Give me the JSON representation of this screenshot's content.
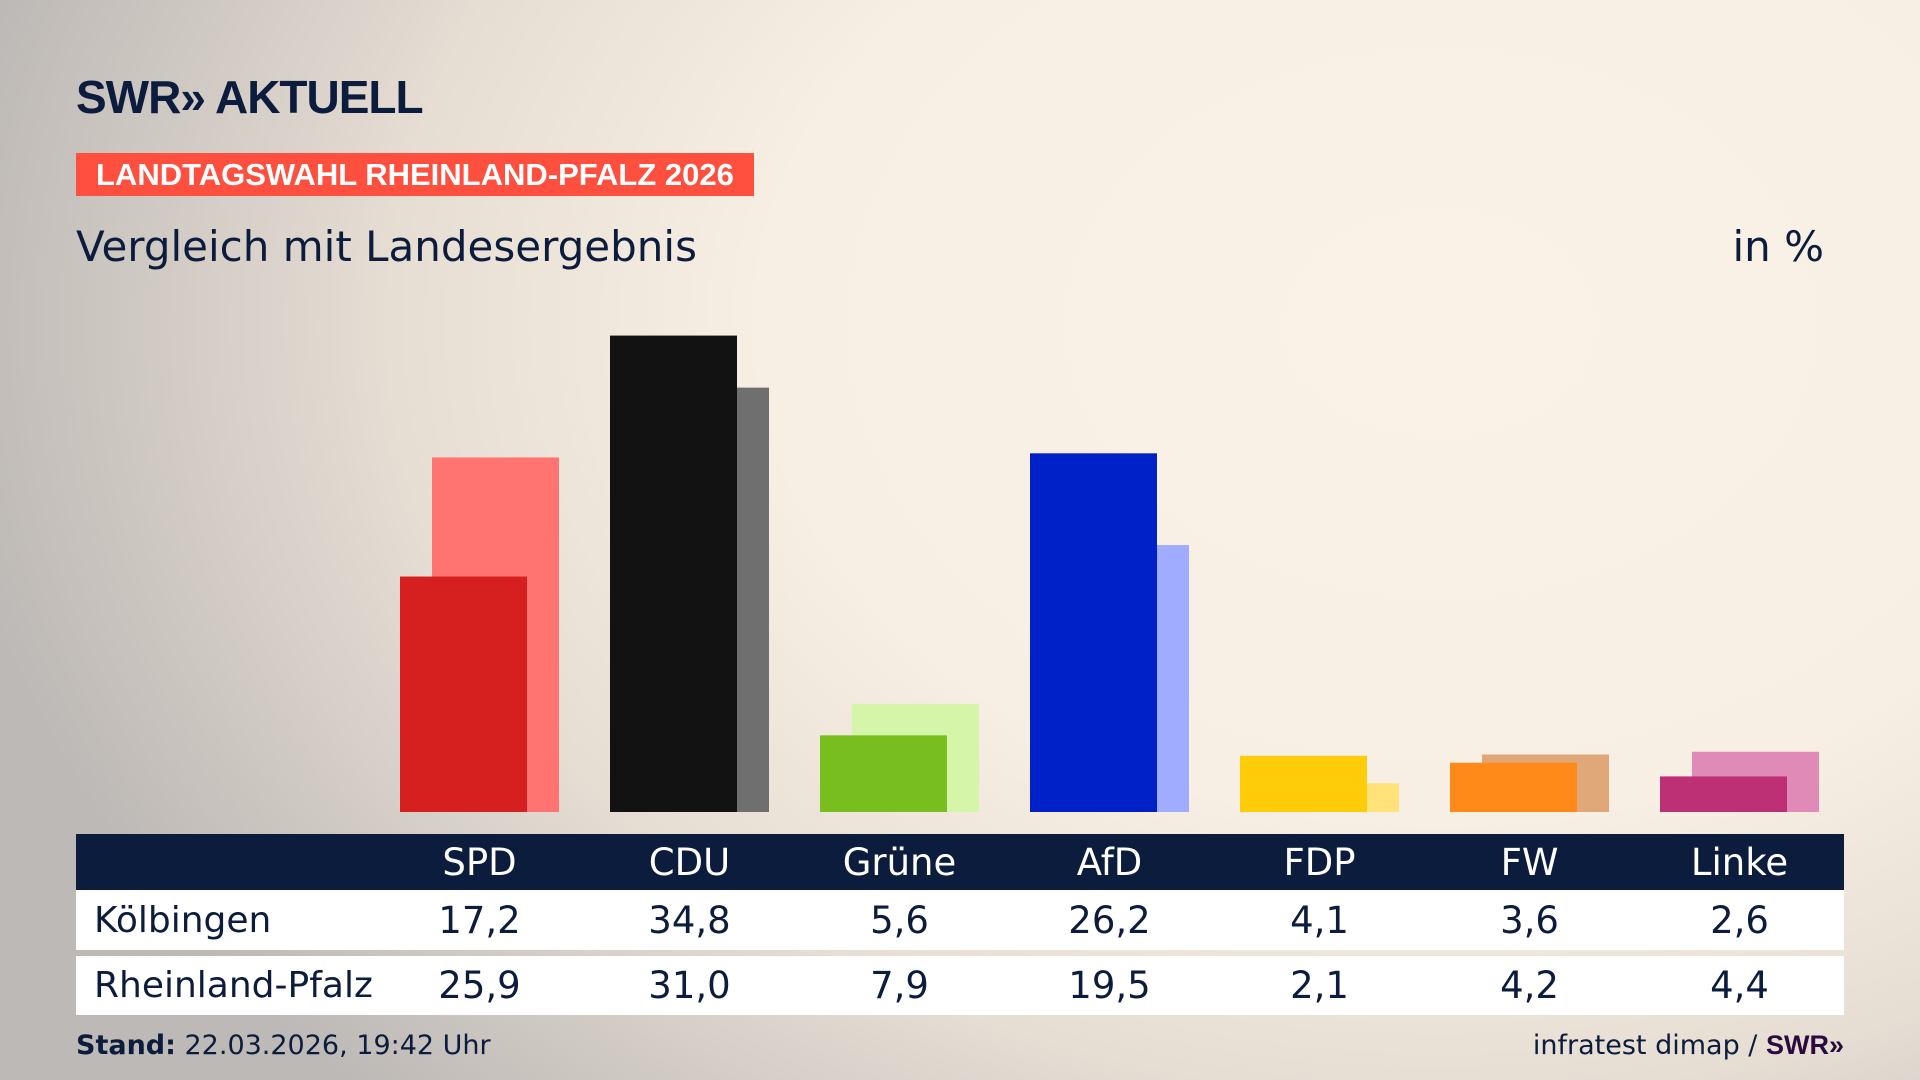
{
  "header": {
    "logo": "SWR» AKTUELL",
    "banner": "LANDTAGSWAHL RHEINLAND-PFALZ 2026",
    "subtitle": "Vergleich mit Landesergebnis",
    "unit": "in %"
  },
  "chart_data": {
    "type": "bar",
    "title": "Vergleich mit Landesergebnis",
    "unit": "in %",
    "categories": [
      "SPD",
      "CDU",
      "Grüne",
      "AfD",
      "FDP",
      "FW",
      "Linke"
    ],
    "series": [
      {
        "name": "Kölbingen",
        "values": [
          17.2,
          34.8,
          5.6,
          26.2,
          4.1,
          3.6,
          2.6
        ],
        "display": [
          "17,2",
          "34,8",
          "5,6",
          "26,2",
          "4,1",
          "3,6",
          "2,6"
        ],
        "colors": [
          "#d61f1f",
          "#121212",
          "#78be1e",
          "#0020c8",
          "#ffcc0a",
          "#ff8a1a",
          "#be3075"
        ]
      },
      {
        "name": "Rheinland-Pfalz",
        "values": [
          25.9,
          31.0,
          7.9,
          19.5,
          2.1,
          4.2,
          4.4
        ],
        "display": [
          "25,9",
          "31,0",
          "7,9",
          "19,5",
          "2,1",
          "4,2",
          "4,4"
        ],
        "colors": [
          "#ff7470",
          "#6f6f6f",
          "#d5f5a8",
          "#a0acff",
          "#ffe37a",
          "#e0a878",
          "#e08ab8"
        ]
      }
    ],
    "ylim": [
      0,
      35
    ],
    "grid": false
  },
  "colors": {
    "navy": "#0c1c3c",
    "banner": "#ff4f3f"
  },
  "footer": {
    "stand_label": "Stand:",
    "stand_value": " 22.03.2026, 19:42 Uhr",
    "source": "infratest dimap / ",
    "source_logo": "SWR»"
  }
}
